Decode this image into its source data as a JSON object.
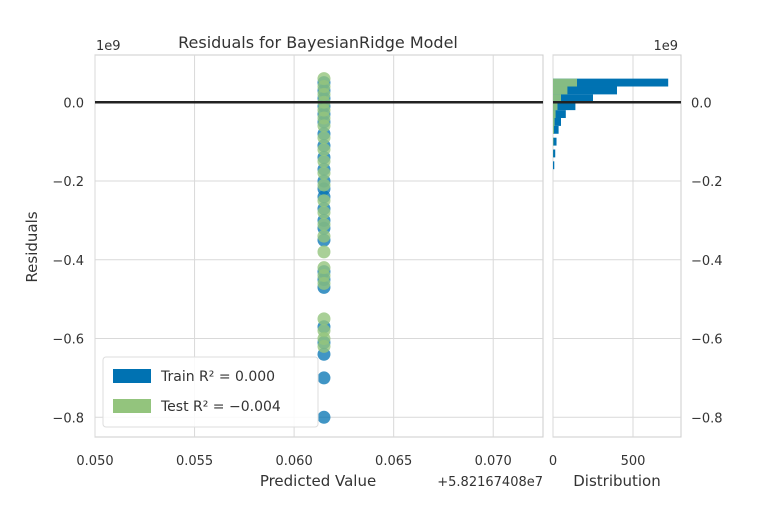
{
  "chart_data": {
    "type": "scatter",
    "title": "Residuals for BayesianRidge Model",
    "xlabel": "Predicted Value",
    "ylabel": "Residuals",
    "x_offset_label": "+5.82167408e7",
    "y_scale_label": "1e9",
    "xlim": [
      0.05,
      0.0725
    ],
    "ylim": [
      -0.85,
      0.12
    ],
    "x_ticks": [
      0.05,
      0.055,
      0.06,
      0.065,
      0.07
    ],
    "x_tick_labels": [
      "0.050",
      "0.055",
      "0.060",
      "0.065",
      "0.070"
    ],
    "y_ticks": [
      0.0,
      -0.2,
      -0.4,
      -0.6,
      -0.8
    ],
    "y_tick_labels": [
      "0.0",
      "−0.2",
      "−0.4",
      "−0.6",
      "−0.8"
    ],
    "grid": true,
    "zero_line": 0.0,
    "legend_placement": "lower-left",
    "series": [
      {
        "name": "Train",
        "legend_label": "Train R² = 0.000",
        "color": "#0072b2",
        "x_value": 0.0615,
        "residuals": [
          0.05,
          0.03,
          0.01,
          -0.01,
          -0.03,
          -0.05,
          -0.08,
          -0.11,
          -0.14,
          -0.17,
          -0.2,
          -0.22,
          -0.24,
          -0.27,
          -0.3,
          -0.32,
          -0.35,
          -0.43,
          -0.45,
          -0.47,
          -0.57,
          -0.61,
          -0.64,
          -0.7,
          -0.8
        ]
      },
      {
        "name": "Test",
        "legend_label": "Test R² = −0.004",
        "color": "#93c47d",
        "x_value": 0.0615,
        "residuals": [
          0.06,
          0.04,
          0.02,
          0.0,
          -0.02,
          -0.04,
          -0.06,
          -0.09,
          -0.12,
          -0.15,
          -0.18,
          -0.21,
          -0.25,
          -0.28,
          -0.31,
          -0.34,
          -0.38,
          -0.42,
          -0.44,
          -0.46,
          -0.55,
          -0.58,
          -0.6,
          -0.62
        ]
      }
    ],
    "distribution": {
      "xlabel": "Distribution",
      "xlim": [
        0,
        800
      ],
      "x_ticks": [
        0,
        500
      ],
      "x_tick_labels": [
        "0",
        "500"
      ],
      "y_scale_label": "1e9",
      "y_tick_labels": [
        "0.0",
        "−0.2",
        "−0.4",
        "−0.6",
        "−0.8"
      ],
      "bins": [
        0.05,
        0.03,
        0.01,
        -0.01,
        -0.03,
        -0.05,
        -0.07,
        -0.1,
        -0.13,
        -0.16
      ],
      "train_counts": [
        720,
        400,
        250,
        140,
        80,
        50,
        35,
        22,
        14,
        8
      ],
      "test_counts": [
        150,
        90,
        50,
        28,
        16,
        10,
        6,
        3,
        1,
        0
      ]
    }
  }
}
